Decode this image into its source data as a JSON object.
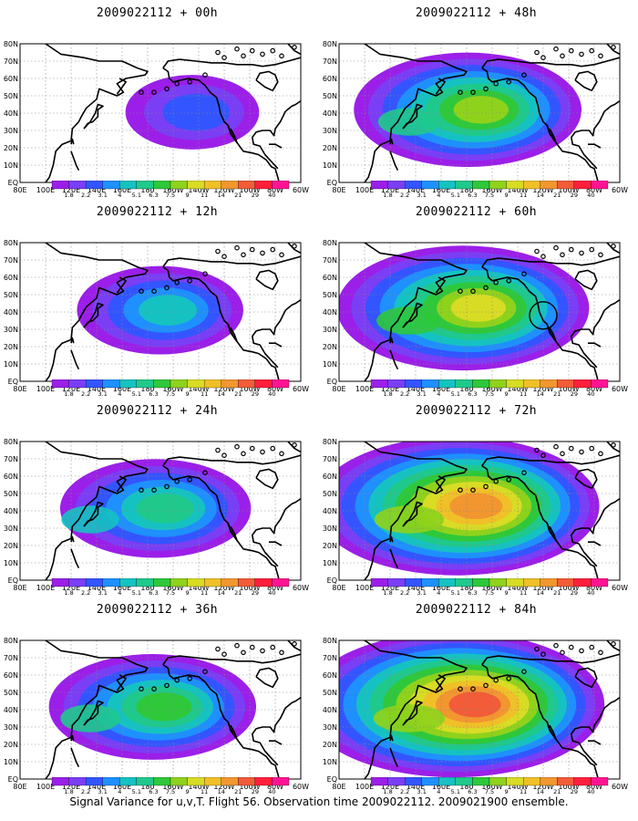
{
  "panels": [
    {
      "title": "2009022112 + 00h",
      "intensity": 0.9
    },
    {
      "title": "2009022112 + 48h",
      "intensity": 3.2
    },
    {
      "title": "2009022112 + 12h",
      "intensity": 1.7
    },
    {
      "title": "2009022112 + 60h",
      "intensity": 3.8
    },
    {
      "title": "2009022112 + 24h",
      "intensity": 2.3
    },
    {
      "title": "2009022112 + 72h",
      "intensity": 4.6
    },
    {
      "title": "2009022112 + 36h",
      "intensity": 2.7
    },
    {
      "title": "2009022112 + 84h",
      "intensity": 5.0
    }
  ],
  "map": {
    "lat_labels": [
      "EQ",
      "10N",
      "20N",
      "30N",
      "40N",
      "50N",
      "60N",
      "70N",
      "80N"
    ],
    "lon_labels": [
      "80E",
      "100E",
      "120E",
      "140E",
      "160E",
      "180",
      "160W",
      "140W",
      "120W",
      "100W",
      "80W",
      "60W"
    ]
  },
  "colorbar": {
    "levels": [
      "1.8",
      "2.2",
      "3.1",
      "4",
      "5.1",
      "6.3",
      "7.5",
      "9",
      "11",
      "14",
      "21",
      "29",
      "40"
    ],
    "colors": [
      "#9b1fe8",
      "#7a3ef5",
      "#3355ff",
      "#1e90ff",
      "#15c2c2",
      "#1fc98c",
      "#2ec83a",
      "#8fd21c",
      "#d8dc24",
      "#f0c028",
      "#f29630",
      "#f25c38",
      "#ff1f3c",
      "#ff1493"
    ]
  },
  "observation_marker": {
    "panel_index": 3,
    "lon": 120,
    "lat": 38
  },
  "caption": "Signal Variance for u,v,T. Flight 56. Observation time 2009022112. 2009021900 ensemble."
}
